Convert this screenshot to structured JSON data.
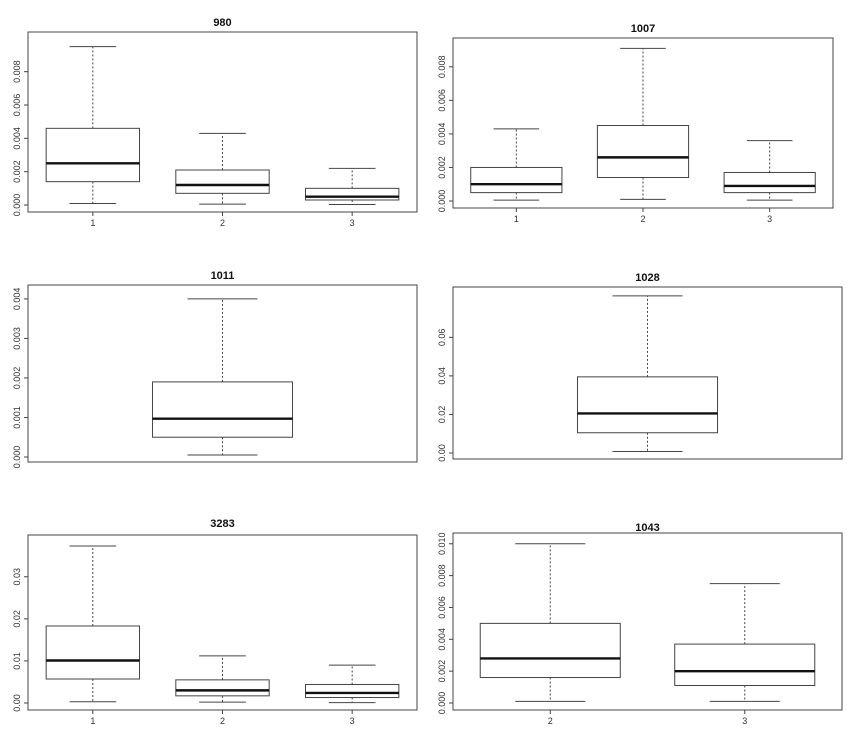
{
  "chart_data": [
    {
      "type": "box",
      "title": "980",
      "categories": [
        "1",
        "2",
        "3"
      ],
      "ylim": [
        0,
        0.0099
      ],
      "yticks": [
        0.0,
        0.002,
        0.004,
        0.006,
        0.008
      ],
      "ytick_labels": [
        "0.000",
        "0.002",
        "0.004",
        "0.006",
        "0.008"
      ],
      "boxes": [
        {
          "label": "1",
          "min": 9e-05,
          "q1": 0.0014,
          "median": 0.0025,
          "q3": 0.0046,
          "max": 0.0095
        },
        {
          "label": "2",
          "min": 5e-05,
          "q1": 0.0007,
          "median": 0.0012,
          "q3": 0.0021,
          "max": 0.0043
        },
        {
          "label": "3",
          "min": 3e-05,
          "q1": 0.0003,
          "median": 0.0005,
          "q3": 0.001,
          "max": 0.0022
        }
      ]
    },
    {
      "type": "box",
      "title": "1007",
      "categories": [
        "1",
        "2",
        "3"
      ],
      "ylim": [
        0,
        0.0093
      ],
      "yticks": [
        0.0,
        0.002,
        0.004,
        0.006,
        0.008
      ],
      "ytick_labels": [
        "0.000",
        "0.002",
        "0.004",
        "0.006",
        "0.008"
      ],
      "boxes": [
        {
          "label": "1",
          "min": 5e-05,
          "q1": 0.0005,
          "median": 0.001,
          "q3": 0.002,
          "max": 0.0043
        },
        {
          "label": "2",
          "min": 0.0001,
          "q1": 0.0014,
          "median": 0.0026,
          "q3": 0.0045,
          "max": 0.0091
        },
        {
          "label": "3",
          "min": 5e-05,
          "q1": 0.0005,
          "median": 0.0009,
          "q3": 0.0017,
          "max": 0.0036
        }
      ]
    },
    {
      "type": "box",
      "title": "1011",
      "categories": [],
      "ylim": [
        0,
        0.0042
      ],
      "yticks": [
        0.0,
        0.001,
        0.002,
        0.003,
        0.004
      ],
      "ytick_labels": [
        "0.000",
        "0.001",
        "0.002",
        "0.003",
        "0.004"
      ],
      "boxes": [
        {
          "label": "",
          "min": 5e-05,
          "q1": 0.0005,
          "median": 0.00097,
          "q3": 0.0019,
          "max": 0.004
        }
      ]
    },
    {
      "type": "box",
      "title": "1028",
      "categories": [],
      "ylim": [
        0,
        0.083
      ],
      "yticks": [
        0.0,
        0.02,
        0.04,
        0.06
      ],
      "ytick_labels": [
        "0.00",
        "0.02",
        "0.04",
        "0.06"
      ],
      "boxes": [
        {
          "label": "",
          "min": 0.0008,
          "q1": 0.0105,
          "median": 0.0205,
          "q3": 0.0395,
          "max": 0.0815
        }
      ]
    },
    {
      "type": "box",
      "title": "3283",
      "categories": [
        "1",
        "2",
        "3"
      ],
      "ylim": [
        0,
        0.0385
      ],
      "yticks": [
        0.0,
        0.01,
        0.02,
        0.03
      ],
      "ytick_labels": [
        "0.00",
        "0.01",
        "0.02",
        "0.03"
      ],
      "boxes": [
        {
          "label": "1",
          "min": 0.0003,
          "q1": 0.0057,
          "median": 0.0101,
          "q3": 0.0183,
          "max": 0.0373
        },
        {
          "label": "2",
          "min": 0.0002,
          "q1": 0.0017,
          "median": 0.003,
          "q3": 0.0055,
          "max": 0.0112
        },
        {
          "label": "3",
          "min": 0.0001,
          "q1": 0.0013,
          "median": 0.0024,
          "q3": 0.0044,
          "max": 0.009
        }
      ]
    },
    {
      "type": "box",
      "title": "1043",
      "categories": [
        "2",
        "3"
      ],
      "ylim": [
        0,
        0.0103
      ],
      "yticks": [
        0.0,
        0.002,
        0.004,
        0.006,
        0.008,
        0.01
      ],
      "ytick_labels": [
        "0.000",
        "0.002",
        "0.004",
        "0.006",
        "0.008",
        "0.010"
      ],
      "boxes": [
        {
          "label": "2",
          "min": 0.0001,
          "q1": 0.0016,
          "median": 0.0028,
          "q3": 0.005,
          "max": 0.01
        },
        {
          "label": "3",
          "min": 0.0001,
          "q1": 0.0011,
          "median": 0.002,
          "q3": 0.0037,
          "max": 0.0075
        }
      ]
    }
  ]
}
